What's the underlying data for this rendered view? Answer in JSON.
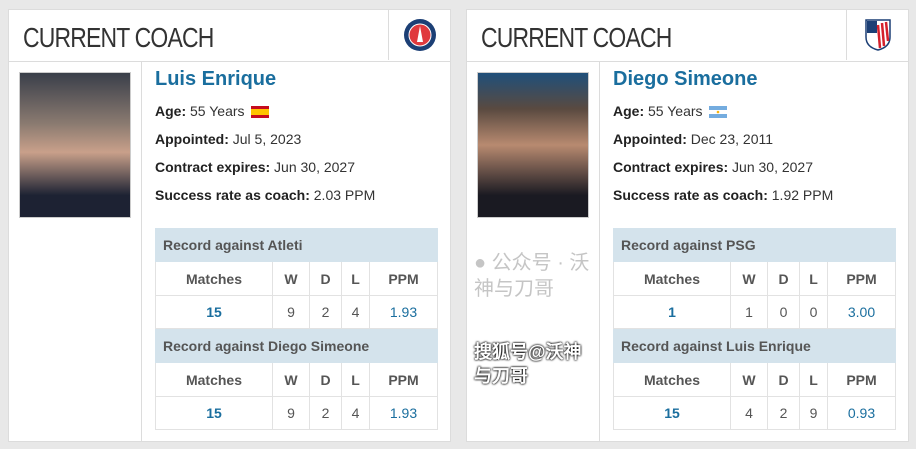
{
  "cards": [
    {
      "title": "CURRENT COACH",
      "club_logo": "psg-logo",
      "name": "Luis Enrique",
      "age_label": "Age:",
      "age": "55 Years",
      "flag": "spain-flag",
      "appointed_label": "Appointed:",
      "appointed": "Jul 5, 2023",
      "contract_label": "Contract expires:",
      "contract": "Jun 30, 2027",
      "success_label": "Success rate as coach:",
      "success": "2.03 PPM",
      "tables": [
        {
          "title": "Record against Atleti",
          "headers": [
            "Matches",
            "W",
            "D",
            "L",
            "PPM"
          ],
          "row": [
            "15",
            "9",
            "2",
            "4",
            "1.93"
          ]
        },
        {
          "title": "Record against Diego Simeone",
          "headers": [
            "Matches",
            "W",
            "D",
            "L",
            "PPM"
          ],
          "row": [
            "15",
            "9",
            "2",
            "4",
            "1.93"
          ]
        }
      ]
    },
    {
      "title": "CURRENT COACH",
      "club_logo": "atletico-madrid-logo",
      "name": "Diego Simeone",
      "age_label": "Age:",
      "age": "55 Years",
      "flag": "argentina-flag",
      "appointed_label": "Appointed:",
      "appointed": "Dec 23, 2011",
      "contract_label": "Contract expires:",
      "contract": "Jun 30, 2027",
      "success_label": "Success rate as coach:",
      "success": "1.92 PPM",
      "tables": [
        {
          "title": "Record against PSG",
          "headers": [
            "Matches",
            "W",
            "D",
            "L",
            "PPM"
          ],
          "row": [
            "1",
            "1",
            "0",
            "0",
            "3.00"
          ]
        },
        {
          "title": "Record against Luis Enrique",
          "headers": [
            "Matches",
            "W",
            "D",
            "L",
            "PPM"
          ],
          "row": [
            "15",
            "4",
            "2",
            "9",
            "0.93"
          ]
        }
      ]
    }
  ],
  "watermark": {
    "wechat": "公众号 · 沃神与刀哥",
    "sohu": "搜狐号@沃神与刀哥"
  },
  "colors": {
    "accent": "#1a6e9e",
    "table_header": "#d4e3ec"
  }
}
